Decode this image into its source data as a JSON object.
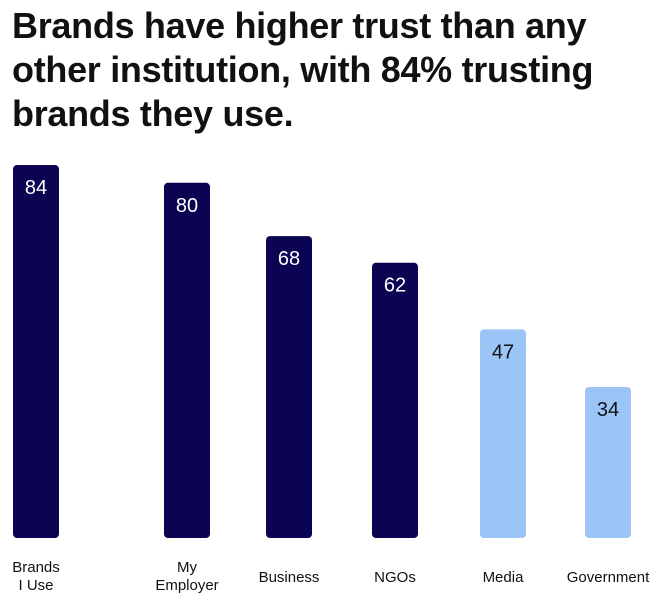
{
  "chart_data": {
    "type": "bar",
    "title": "Brands have higher trust than any other institution, with 84% trusting brands they use.",
    "categories": [
      [
        "Brands",
        "I Use"
      ],
      [
        "My",
        "Employer"
      ],
      [
        "Business"
      ],
      [
        "NGOs"
      ],
      [
        "Media"
      ],
      [
        "Government"
      ]
    ],
    "values": [
      84,
      80,
      68,
      62,
      47,
      34
    ],
    "value_labels": [
      "84",
      "80",
      "68",
      "62",
      "47",
      "34"
    ],
    "bar_colors": [
      "#0b0452",
      "#0b0452",
      "#0b0452",
      "#0b0452",
      "#9cc5f7",
      "#9cc5f7"
    ],
    "label_colors": [
      "#ffffff",
      "#ffffff",
      "#ffffff",
      "#ffffff",
      "#111111",
      "#111111"
    ],
    "xlabel": "",
    "ylabel": "",
    "ylim": [
      0,
      100
    ],
    "grid": false,
    "legend": "none"
  }
}
